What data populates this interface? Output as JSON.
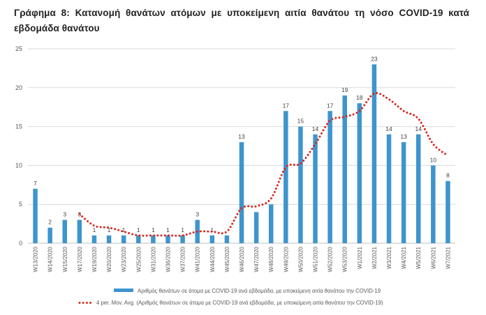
{
  "title_line1": "Γράφημα 8: Κατανομή θανάτων ατόμων με υποκείμενη αιτία θανάτου τη νόσο COVID-19 κατά",
  "title_line2": "εβδομάδα θανάτου",
  "colors": {
    "bar": "#3e95cd",
    "avg": "#d9261c",
    "grid": "#d9d9d9",
    "axis": "#bfbfbf"
  },
  "chart_data": {
    "type": "bar",
    "categories": [
      "W13/2020",
      "W14/2020",
      "W15/2020",
      "W17/2020",
      "W19/2020",
      "W20/2020",
      "W23/2020",
      "W25/2020",
      "W31/2020",
      "W36/2020",
      "W37/2020",
      "W41/2020",
      "W44/2020",
      "W45/2020",
      "W46/2020",
      "W47/2020",
      "W48/2020",
      "W49/2020",
      "W50/2020",
      "W51/2020",
      "W52/2020",
      "W53/2020",
      "W1/2021",
      "W2/2021",
      "W3/2021",
      "W4/2021",
      "W5/2021",
      "W6/2021",
      "W7/2021"
    ],
    "ylim": [
      0,
      25
    ],
    "yticks": [
      0,
      5,
      10,
      15,
      20,
      25
    ],
    "grid": true,
    "legend_position": "bottom",
    "series": [
      {
        "name": "Αριθμός θανάτων σε άτομα με COVID-19 ανά εβδομάδα, με υποκείμενη αιτία θανάτου την COVID-19",
        "kind": "bar",
        "values": [
          7,
          2,
          3,
          3,
          1,
          1,
          1,
          1,
          1,
          1,
          1,
          3,
          1,
          1,
          13,
          4,
          5,
          17,
          15,
          14,
          17,
          19,
          18,
          23,
          14,
          13,
          14,
          10,
          8
        ],
        "labels": [
          "7",
          "2",
          "3",
          "3",
          "1",
          "1",
          "1",
          "1",
          "1",
          "1",
          "1",
          "3",
          "1",
          "",
          "13",
          "",
          "",
          "17",
          "15",
          "14",
          "17",
          "19",
          "18",
          "23",
          "14",
          "13",
          "14",
          "10",
          "8"
        ]
      },
      {
        "name": "4 per. Mov. Avg. (Αριθμός θανάτων σε άτομα με COVID-19 ανά εβδομάδα, με υποκείμενη αιτία θανάτου την COVID-19)",
        "kind": "line",
        "style": "dotted",
        "values": [
          null,
          null,
          null,
          3.75,
          2.25,
          2.0,
          1.5,
          1.0,
          1.0,
          1.0,
          1.0,
          1.5,
          1.5,
          1.5,
          4.5,
          4.75,
          5.75,
          9.75,
          10.25,
          12.75,
          15.75,
          16.25,
          17.0,
          19.25,
          18.5,
          17.0,
          16.0,
          12.75,
          11.25
        ]
      }
    ]
  }
}
